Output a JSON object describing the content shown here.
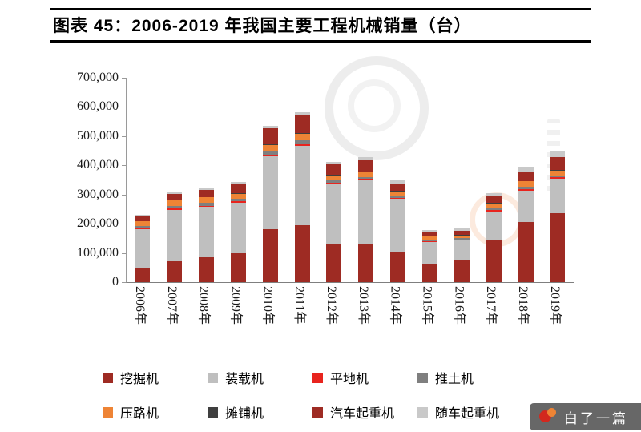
{
  "title": "图表 45：2006-2019 年我国主要工程机械销量（台）",
  "badge": {
    "text": "白了一篇"
  },
  "chart_data": {
    "type": "bar",
    "stacked": true,
    "title": "图表 45：2006-2019 年我国主要工程机械销量（台）",
    "xlabel": "",
    "ylabel": "",
    "ylim": [
      0,
      700000
    ],
    "grid": false,
    "legend_position": "bottom",
    "categories": [
      "2006年",
      "2007年",
      "2008年",
      "2009年",
      "2010年",
      "2011年",
      "2012年",
      "2013年",
      "2014年",
      "2015年",
      "2016年",
      "2017年",
      "2018年",
      "2019年"
    ],
    "yticks": [
      {
        "value": 0,
        "label": "0"
      },
      {
        "value": 100000,
        "label": "100,000"
      },
      {
        "value": 200000,
        "label": "200,000"
      },
      {
        "value": 300000,
        "label": "300,000"
      },
      {
        "value": 400000,
        "label": "400,000"
      },
      {
        "value": 500000,
        "label": "500,000"
      },
      {
        "value": 600000,
        "label": "600,000"
      },
      {
        "value": 700000,
        "label": "700,000"
      }
    ],
    "series": [
      {
        "name": "挖掘机",
        "color": "#9e2b23",
        "values": [
          50000,
          72000,
          85000,
          100000,
          180000,
          195000,
          130000,
          128000,
          105000,
          60000,
          73000,
          145000,
          205000,
          235000
        ]
      },
      {
        "name": "装载机",
        "color": "#bfbfbf",
        "values": [
          130000,
          175000,
          172000,
          172000,
          250000,
          272000,
          205000,
          220000,
          180000,
          78000,
          70000,
          98000,
          108000,
          120000
        ]
      },
      {
        "name": "平地机",
        "color": "#e8241e",
        "values": [
          4000,
          5000,
          5000,
          4000,
          6000,
          6000,
          5000,
          5000,
          4000,
          3000,
          3000,
          5000,
          6000,
          5000
        ]
      },
      {
        "name": "推土机",
        "color": "#7f7f7f",
        "values": [
          8000,
          9000,
          10000,
          9000,
          12000,
          12000,
          8000,
          8000,
          7000,
          5000,
          4000,
          6000,
          8000,
          6000
        ]
      },
      {
        "name": "压路机",
        "color": "#ee8435",
        "values": [
          16000,
          18000,
          18000,
          18000,
          22000,
          22000,
          17000,
          17000,
          15000,
          10000,
          10000,
          15000,
          18000,
          17000
        ]
      },
      {
        "name": "摊铺机",
        "color": "#3f3f3f",
        "values": [
          2000,
          2000,
          2000,
          2000,
          3000,
          3000,
          2000,
          2000,
          2000,
          1000,
          1000,
          2000,
          2000,
          2000
        ]
      },
      {
        "name": "汽车起重机",
        "color": "#9e2b23",
        "values": [
          15000,
          22000,
          25000,
          32000,
          55000,
          62000,
          38000,
          38000,
          26000,
          15000,
          14000,
          22000,
          32000,
          43000
        ]
      },
      {
        "name": "随车起重机",
        "color": "#c9c9c9",
        "values": [
          5000,
          5000,
          5000,
          5000,
          8000,
          10000,
          8000,
          10000,
          10000,
          8000,
          10000,
          12000,
          16000,
          20000
        ]
      }
    ]
  }
}
